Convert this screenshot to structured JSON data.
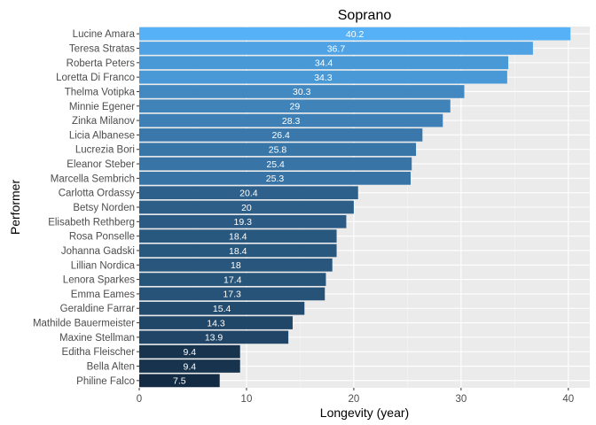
{
  "chart_data": {
    "type": "bar",
    "orientation": "horizontal",
    "title": "Soprano",
    "xlabel": "Longevity (year)",
    "ylabel": "Performer",
    "xlim": [
      0,
      42
    ],
    "xticks": [
      0,
      10,
      20,
      30,
      40
    ],
    "grid": true,
    "color_low": "#132B43",
    "color_high": "#56B1F7",
    "categories": [
      "Lucine Amara",
      "Teresa Stratas",
      "Roberta Peters",
      "Loretta Di Franco",
      "Thelma Votipka",
      "Minnie Egener",
      "Zinka Milanov",
      "Licia Albanese",
      "Lucrezia Bori",
      "Eleanor Steber",
      "Marcella Sembrich",
      "Carlotta Ordassy",
      "Betsy Norden",
      "Elisabeth Rethberg",
      "Rosa Ponselle",
      "Johanna Gadski",
      "Lillian Nordica",
      "Lenora Sparkes",
      "Emma Eames",
      "Geraldine Farrar",
      "Mathilde Bauermeister",
      "Maxine Stellman",
      "Editha Fleischer",
      "Bella Alten",
      "Philine Falco"
    ],
    "values": [
      40.2,
      36.7,
      34.4,
      34.3,
      30.3,
      29,
      28.3,
      26.4,
      25.8,
      25.4,
      25.3,
      20.4,
      20,
      19.3,
      18.4,
      18.4,
      18,
      17.4,
      17.3,
      15.4,
      14.3,
      13.9,
      9.4,
      9.4,
      7.5
    ]
  }
}
